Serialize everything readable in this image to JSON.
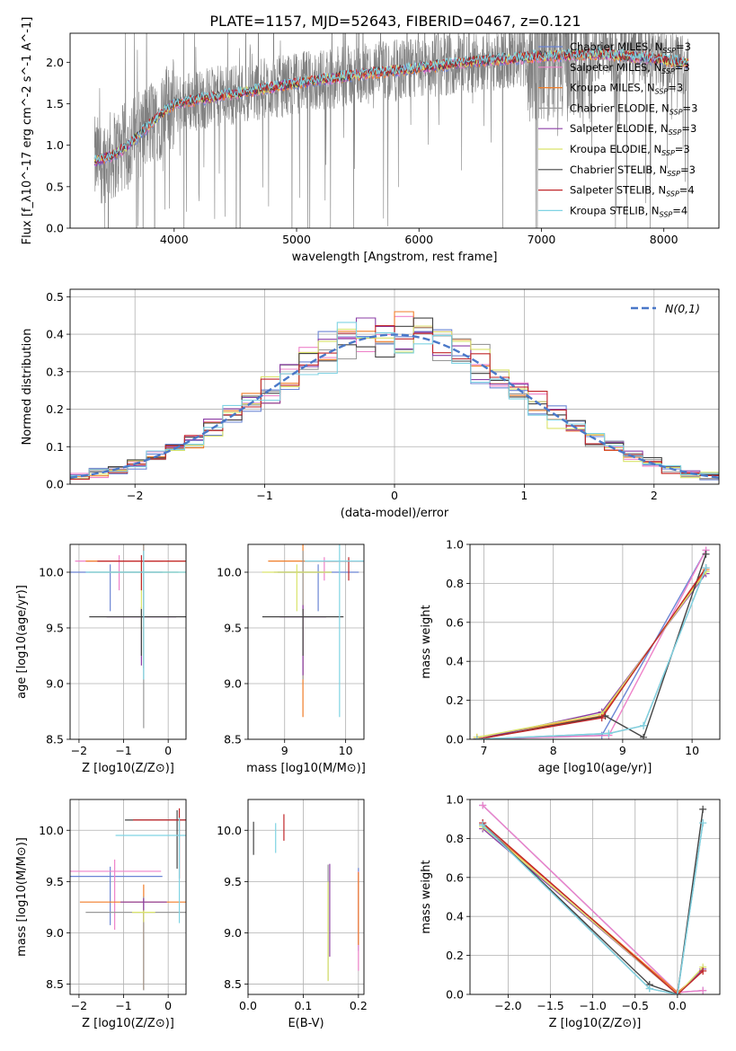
{
  "figure_title": "PLATE=1157, MJD=52643, FIBERID=0467, z=0.121",
  "series_styles": [
    {
      "label": "Chabrier MILES, N",
      "sub": "SSP",
      "tail": "=3",
      "color": "#6b85d4"
    },
    {
      "label": "Salpeter MILES, N",
      "sub": "SSP",
      "tail": "=3",
      "color": "#ee82c9"
    },
    {
      "label": "Kroupa MILES, N",
      "sub": "SSP",
      "tail": "=3",
      "color": "#f07d28"
    },
    {
      "label": "Chabrier ELODIE, N",
      "sub": "SSP",
      "tail": "=3",
      "color": "#999999"
    },
    {
      "label": "Salpeter ELODIE, N",
      "sub": "SSP",
      "tail": "=3",
      "color": "#8b3ea6"
    },
    {
      "label": "Kroupa ELODIE, N",
      "sub": "SSP",
      "tail": "=3",
      "color": "#d9e36a"
    },
    {
      "label": "Chabrier STELIB, N",
      "sub": "SSP",
      "tail": "=3",
      "color": "#444444"
    },
    {
      "label": "Salpeter STELIB, N",
      "sub": "SSP",
      "tail": "=4",
      "color": "#c0262a"
    },
    {
      "label": "Kroupa STELIB, N",
      "sub": "SSP",
      "tail": "=4",
      "color": "#7fd3e3"
    }
  ],
  "chart_data": [
    {
      "id": "spectrum",
      "type": "line",
      "xlabel": "wavelength [Angstrom, rest frame]",
      "ylabel": "Flux [f_λ10^-17 erg cm^-2 s^-1 A^-1]",
      "xlim": [
        3150,
        8450
      ],
      "ylim": [
        0,
        2.35
      ],
      "xticks": [
        4000,
        5000,
        6000,
        7000,
        8000
      ],
      "yticks": [
        0.0,
        0.5,
        1.0,
        1.5,
        2.0
      ],
      "data_color": "#808080",
      "continuum": {
        "x": [
          3350,
          3500,
          3600,
          3700,
          3800,
          3900,
          4000,
          4200,
          4500,
          5000,
          5500,
          6000,
          6500,
          7000,
          7500,
          8000,
          8200
        ],
        "y": [
          0.8,
          0.88,
          0.97,
          1.1,
          1.25,
          1.38,
          1.5,
          1.55,
          1.62,
          1.75,
          1.85,
          1.93,
          2.02,
          2.07,
          2.1,
          2.03,
          1.98
        ]
      }
    },
    {
      "id": "residuals",
      "type": "line",
      "xlabel": "(data-model)/error",
      "ylabel": "Normed distribution",
      "xlim": [
        -2.5,
        2.5
      ],
      "ylim": [
        0,
        0.52
      ],
      "xticks": [
        -2,
        -1,
        0,
        1,
        2
      ],
      "yticks": [
        0.0,
        0.1,
        0.2,
        0.3,
        0.4,
        0.5
      ],
      "legend": "N(0,1)",
      "legend_loc": "upper right",
      "gaussian": {
        "mu": 0,
        "sigma": 1,
        "color": "#4a78c8"
      },
      "bins": 34
    },
    {
      "id": "age_vs_Z",
      "type": "scatter",
      "xlabel": "Z [log10(Z/Z⊙)]",
      "ylabel": "age [log10(age/yr)]",
      "xlim": [
        -2.2,
        0.4
      ],
      "ylim": [
        8.5,
        10.25
      ],
      "xticks": [
        -2,
        -1,
        0
      ],
      "yticks": [
        8.5,
        9.0,
        9.5,
        10.0
      ],
      "cross_x": [
        -1.3,
        -1.1,
        -0.55,
        -0.55,
        -0.6,
        -0.6,
        -0.6,
        -0.6,
        -0.55
      ],
      "cross_y": [
        10.0,
        10.1,
        10.1,
        10.0,
        9.6,
        10.0,
        9.6,
        10.1,
        10.0
      ]
    },
    {
      "id": "age_vs_mass",
      "type": "scatter",
      "xlabel": "mass [log10(M/M⊙)]",
      "ylabel": "",
      "xlim": [
        8.4,
        10.3
      ],
      "ylim": [
        8.5,
        10.25
      ],
      "xticks": [
        9,
        10
      ],
      "yticks": [
        8.5,
        9.0,
        9.5,
        10.0
      ],
      "cross_x": [
        9.55,
        9.65,
        9.3,
        9.3,
        9.3,
        9.2,
        9.3,
        10.05,
        9.9
      ],
      "cross_y": [
        10.0,
        10.1,
        10.1,
        10.0,
        9.6,
        10.0,
        9.6,
        10.1,
        10.1
      ]
    },
    {
      "id": "mass_weight_vs_age",
      "type": "line",
      "xlabel": "age [log10(age/yr)]",
      "ylabel": "mass weight",
      "xlim": [
        6.8,
        10.4
      ],
      "ylim": [
        0,
        1.0
      ],
      "xticks": [
        7,
        8,
        9,
        10
      ],
      "yticks": [
        0.0,
        0.2,
        0.4,
        0.6,
        0.8,
        1.0
      ],
      "series_x": [
        [
          6.9,
          8.7,
          10.2
        ],
        [
          6.9,
          8.8,
          10.2
        ],
        [
          6.9,
          8.7,
          10.2
        ],
        [
          6.9,
          8.8,
          9.3,
          10.2
        ],
        [
          6.9,
          8.7,
          10.2
        ],
        [
          6.9,
          8.7,
          10.2
        ],
        [
          6.9,
          8.75,
          9.3,
          10.2
        ],
        [
          6.9,
          8.7,
          10.2
        ],
        [
          6.9,
          8.8,
          9.3,
          10.2
        ]
      ],
      "series_y": [
        [
          0.0,
          0.02,
          0.97
        ],
        [
          0.0,
          0.02,
          0.97
        ],
        [
          0.01,
          0.12,
          0.87
        ],
        [
          0.0,
          0.03,
          0.07,
          0.88
        ],
        [
          0.0,
          0.14,
          0.85
        ],
        [
          0.01,
          0.13,
          0.86
        ],
        [
          0.0,
          0.12,
          0.01,
          0.95
        ],
        [
          0.0,
          0.11,
          0.88
        ],
        [
          0.0,
          0.03,
          0.07,
          0.88
        ]
      ]
    },
    {
      "id": "mass_vs_Z",
      "type": "scatter",
      "xlabel": "Z [log10(Z/Z⊙)]",
      "ylabel": "mass [log10(M/M⊙)]",
      "xlim": [
        -2.2,
        0.4
      ],
      "ylim": [
        8.4,
        10.3
      ],
      "xticks": [
        -2,
        -1,
        0
      ],
      "yticks": [
        8.5,
        9.0,
        9.5,
        10.0
      ],
      "cross_x": [
        -1.3,
        -1.2,
        -0.55,
        -0.55,
        -0.55,
        -0.55,
        0.2,
        0.25,
        0.25
      ],
      "cross_y": [
        9.55,
        9.6,
        9.3,
        9.2,
        9.3,
        9.2,
        10.1,
        10.1,
        9.95
      ]
    },
    {
      "id": "mass_vs_ebv",
      "type": "scatter",
      "xlabel": "E(B-V)",
      "ylabel": "",
      "xlim": [
        0.0,
        0.21
      ],
      "ylim": [
        8.4,
        10.3
      ],
      "xticks": [
        0.0,
        0.1,
        0.2
      ],
      "yticks": [
        8.5,
        9.0,
        9.5,
        10.0
      ],
      "cross_x": [
        0.2,
        0.2,
        0.2,
        0.145,
        0.148,
        0.145,
        0.01,
        0.065,
        0.05
      ],
      "cross_y": [
        9.3,
        9.2,
        9.3,
        9.2,
        9.3,
        9.1,
        9.95,
        10.05,
        9.95
      ]
    },
    {
      "id": "mass_weight_vs_Z",
      "type": "line",
      "xlabel": "Z [log10(Z/Z⊙)]",
      "ylabel": "mass weight",
      "xlim": [
        -2.45,
        0.5
      ],
      "ylim": [
        0,
        1.0
      ],
      "xticks": [
        -2.0,
        -1.5,
        -1.0,
        -0.5,
        0.0
      ],
      "yticks": [
        0.0,
        0.2,
        0.4,
        0.6,
        0.8,
        1.0
      ],
      "series_x": [
        [
          -2.3,
          0.0,
          0.3
        ],
        [
          -2.3,
          0.0,
          0.3
        ],
        [
          -2.3,
          0.0,
          0.3
        ],
        [
          -2.3,
          -0.33,
          0.0,
          0.3
        ],
        [
          -2.3,
          0.0,
          0.3
        ],
        [
          -2.3,
          0.0,
          0.3
        ],
        [
          -2.3,
          -0.33,
          0.0,
          0.3
        ],
        [
          -2.3,
          0.0,
          0.3
        ],
        [
          -2.3,
          -0.33,
          0.0,
          0.3
        ]
      ],
      "series_y": [
        [
          0.97,
          0.01,
          0.02
        ],
        [
          0.97,
          0.01,
          0.02
        ],
        [
          0.87,
          0.01,
          0.12
        ],
        [
          0.88,
          0.03,
          0.0,
          0.88
        ],
        [
          0.85,
          0.0,
          0.13
        ],
        [
          0.86,
          0.0,
          0.14
        ],
        [
          0.87,
          0.05,
          0.0,
          0.95
        ],
        [
          0.88,
          0.0,
          0.12
        ],
        [
          0.87,
          0.03,
          0.0,
          0.88
        ]
      ]
    }
  ]
}
